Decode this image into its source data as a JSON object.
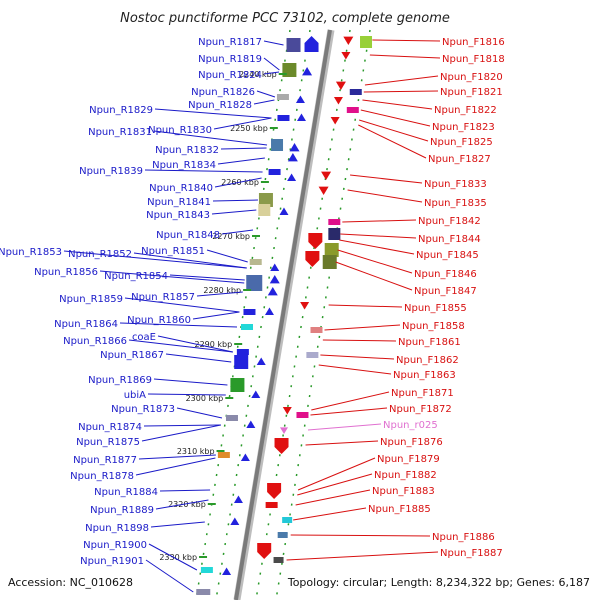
{
  "title": "Nostoc punctiforme PCC 73102, complete genome",
  "footer": {
    "accession": "Accession: NC_010628",
    "topology": "Topology: circular; Length: 8,234,322 bp; Genes: 6,187"
  },
  "colors": {
    "left_label": "#1a1ac8",
    "right_label": "#d81010",
    "rna_label": "#e070d0"
  },
  "scale_labels": [
    "2240 kbp",
    "2250 kbp",
    "2260 kbp",
    "2270 kbp",
    "2280 kbp",
    "2290 kbp",
    "2300 kbp",
    "2310 kbp",
    "2320 kbp",
    "2330 kbp"
  ],
  "left_genes": [
    "Npun_R1817",
    "Npun_R1819",
    "Npun_R1824",
    "Npun_R1826",
    "Npun_R1828",
    "Npun_R1829",
    "Npun_R1830",
    "Npun_R1831",
    "Npun_R1832",
    "Npun_R1834",
    "Npun_R1839",
    "Npun_R1840",
    "Npun_R1841",
    "Npun_R1843",
    "Npun_R1848",
    "Npun_R1851",
    "Npun_R1853",
    "Npun_R1852",
    "Npun_R1856",
    "Npun_R1854",
    "Npun_R1857",
    "Npun_R1859",
    "Npun_R1860",
    "Npun_R1864",
    "coaE",
    "Npun_R1866",
    "Npun_R1867",
    "Npun_R1869",
    "ubiA",
    "Npun_R1873",
    "Npun_R1874",
    "Npun_R1875",
    "Npun_R1877",
    "Npun_R1878",
    "Npun_R1884",
    "Npun_R1889",
    "Npun_R1898",
    "Npun_R1900",
    "Npun_R1901"
  ],
  "right_genes": [
    "Npun_F1816",
    "Npun_F1818",
    "Npun_F1820",
    "Npun_F1821",
    "Npun_F1822",
    "Npun_F1823",
    "Npun_F1825",
    "Npun_F1827",
    "Npun_F1833",
    "Npun_F1835",
    "Npun_F1842",
    "Npun_F1844",
    "Npun_F1845",
    "Npun_F1846",
    "Npun_F1847",
    "Npun_F1855",
    "Npun_F1858",
    "Npun_F1861",
    "Npun_F1862",
    "Npun_F1863",
    "Npun_F1871",
    "Npun_F1872",
    "Npun_r025",
    "Npun_F1876",
    "Npun_F1879",
    "Npun_F1882",
    "Npun_F1883",
    "Npun_F1885",
    "Npun_F1886",
    "Npun_F1887"
  ]
}
